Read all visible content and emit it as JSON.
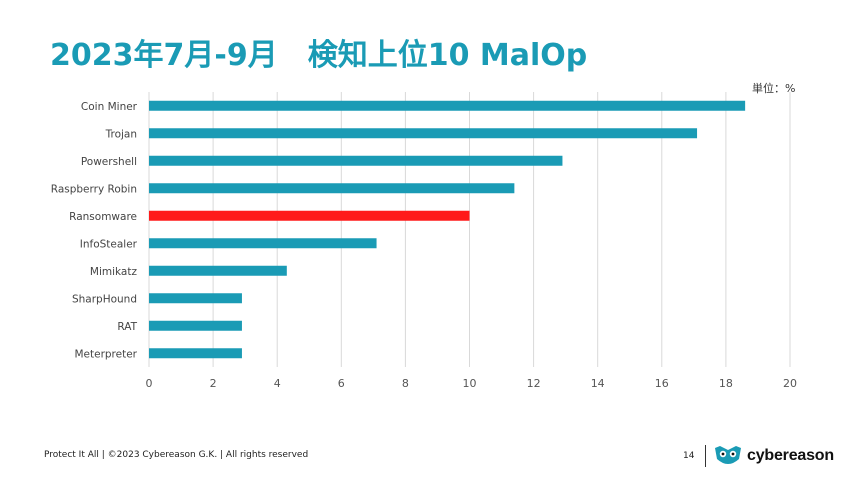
{
  "title": "2023年7月-9月　検知上位10 MalOp",
  "unit_label": "単位：%",
  "footer": {
    "text": "Protect It All | ©2023 Cybereason G.K. | All rights reserved",
    "page_number": "14",
    "brand": "cybereason"
  },
  "colors": {
    "title": "#1a9bb5",
    "bar": "#1a9bb5",
    "highlight": "#ff1a1a",
    "grid": "#d9d9d9"
  },
  "chart_data": {
    "type": "bar",
    "orientation": "horizontal",
    "title": "",
    "xlabel": "",
    "ylabel": "",
    "categories": [
      "Coin Miner",
      "Trojan",
      "Powershell",
      "Raspberry Robin",
      "Ransomware",
      "InfoStealer",
      "Mimikatz",
      "SharpHound",
      "RAT",
      "Meterpreter"
    ],
    "values": [
      18.6,
      17.1,
      12.9,
      11.4,
      10.0,
      7.1,
      4.3,
      2.9,
      2.9,
      2.9
    ],
    "highlight_category": "Ransomware",
    "xlim": [
      0,
      20
    ],
    "xticks": [
      0,
      2,
      4,
      6,
      8,
      10,
      12,
      14,
      16,
      18,
      20
    ],
    "grid": "vertical"
  }
}
